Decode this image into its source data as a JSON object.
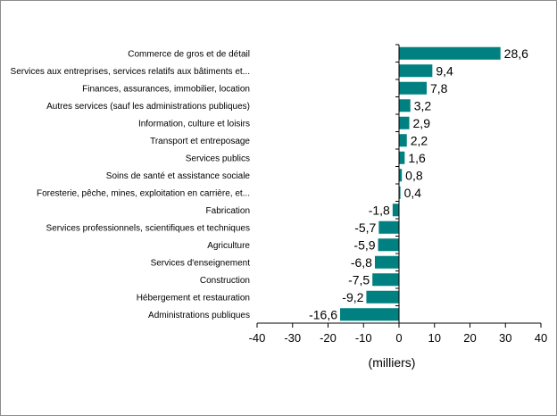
{
  "chart_data": {
    "type": "bar",
    "orientation": "horizontal",
    "categories": [
      "Commerce de gros et de détail",
      "Services aux entreprises, services relatifs aux bâtiments et...",
      "Finances, assurances, immobilier, location",
      "Autres services (sauf les administrations publiques)",
      "Information, culture et loisirs",
      "Transport et entreposage",
      "Services publics",
      "Soins de santé et assistance sociale",
      "Foresterie, pêche, mines, exploitation en carrière, et...",
      "Fabrication",
      "Services professionnels, scientifiques et techniques",
      "Agriculture",
      "Services d'enseignement",
      "Construction",
      "Hébergement et restauration",
      "Administrations publiques"
    ],
    "values": [
      28.6,
      9.4,
      7.8,
      3.2,
      2.9,
      2.2,
      1.6,
      0.8,
      0.4,
      -1.8,
      -5.7,
      -5.9,
      -6.8,
      -7.5,
      -9.2,
      -16.6
    ],
    "value_labels": [
      "28,6",
      "9,4",
      "7,8",
      "3,2",
      "2,9",
      "2,2",
      "1,6",
      "0,8",
      "0,4",
      "-1,8",
      "-5,7",
      "-5,9",
      "-6,8",
      "-7,5",
      "-9,2",
      "-16,6"
    ],
    "xlabel": "(milliers)",
    "ylabel": "",
    "title": "",
    "xlim": [
      -40,
      40
    ],
    "xticks": [
      -40,
      -30,
      -20,
      -10,
      0,
      10,
      20,
      30,
      40
    ],
    "xtick_labels": [
      "-40",
      "-30",
      "-20",
      "-10",
      "0",
      "10",
      "20",
      "30",
      "40"
    ],
    "bar_color": "#008080",
    "grid": false,
    "legend": "none"
  }
}
